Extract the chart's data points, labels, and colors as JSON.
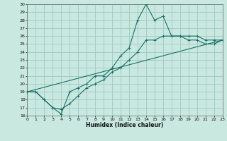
{
  "xlabel": "Humidex (Indice chaleur)",
  "bg_color": "#c8e8e0",
  "grid_color": "#a0c8c0",
  "line_color": "#1a7068",
  "xlim": [
    0,
    23
  ],
  "ylim": [
    16,
    30
  ],
  "xticks": [
    0,
    1,
    2,
    3,
    4,
    5,
    6,
    7,
    8,
    9,
    10,
    11,
    12,
    13,
    14,
    15,
    16,
    17,
    18,
    19,
    20,
    21,
    22,
    23
  ],
  "yticks": [
    16,
    17,
    18,
    19,
    20,
    21,
    22,
    23,
    24,
    25,
    26,
    27,
    28,
    29,
    30
  ],
  "curve_x": [
    0,
    1,
    2,
    3,
    4,
    5,
    6,
    7,
    8,
    9,
    10,
    11,
    12,
    13,
    14,
    15,
    16,
    17,
    18,
    19,
    20,
    21,
    22,
    23
  ],
  "curve_y": [
    19,
    19,
    18,
    17,
    16.2,
    19.0,
    19.5,
    20.0,
    21.0,
    21.0,
    22.0,
    23.5,
    24.5,
    28.0,
    30.0,
    28.0,
    28.5,
    26.0,
    26.0,
    25.5,
    25.5,
    25.0,
    25.0,
    25.5
  ],
  "line1_x": [
    0,
    1,
    2,
    3,
    4,
    5,
    6,
    7,
    8,
    9,
    10,
    11,
    12,
    13,
    14,
    15,
    16,
    17,
    18,
    19,
    20,
    21,
    22,
    23
  ],
  "line1_y": [
    19,
    19,
    18,
    17,
    16.8,
    17.5,
    18.5,
    19.5,
    20.0,
    20.5,
    21.5,
    22.0,
    23.0,
    24.0,
    25.5,
    25.5,
    26.0,
    26.0,
    26.0,
    26.0,
    26.0,
    25.5,
    25.5,
    25.5
  ],
  "line2_x": [
    0,
    23
  ],
  "line2_y": [
    19,
    25.5
  ]
}
